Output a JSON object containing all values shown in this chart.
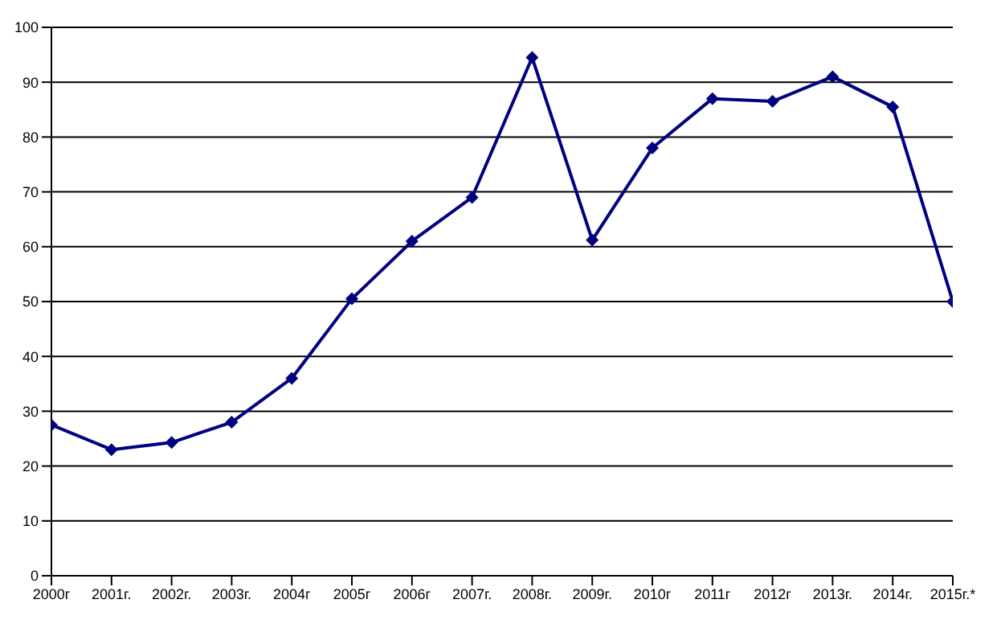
{
  "chart_data": {
    "type": "line",
    "categories": [
      "2000г",
      "2001г.",
      "2002г.",
      "2003г.",
      "2004г",
      "2005г",
      "2006г",
      "2007г.",
      "2008г.",
      "2009г.",
      "2010г",
      "2011г",
      "2012г",
      "2013г.",
      "2014г.",
      "2015г.*"
    ],
    "series": [
      {
        "color": "#000080",
        "values": [
          27.5,
          23,
          24.3,
          28,
          36,
          50.5,
          61,
          69,
          94.5,
          61.2,
          78,
          87,
          86.5,
          91,
          85.5,
          50
        ]
      }
    ],
    "ylim": [
      0,
      100
    ],
    "yticks": [
      0,
      10,
      20,
      30,
      40,
      50,
      60,
      70,
      80,
      90,
      100
    ],
    "grid": "y",
    "marker": "diamond",
    "legend": false
  }
}
